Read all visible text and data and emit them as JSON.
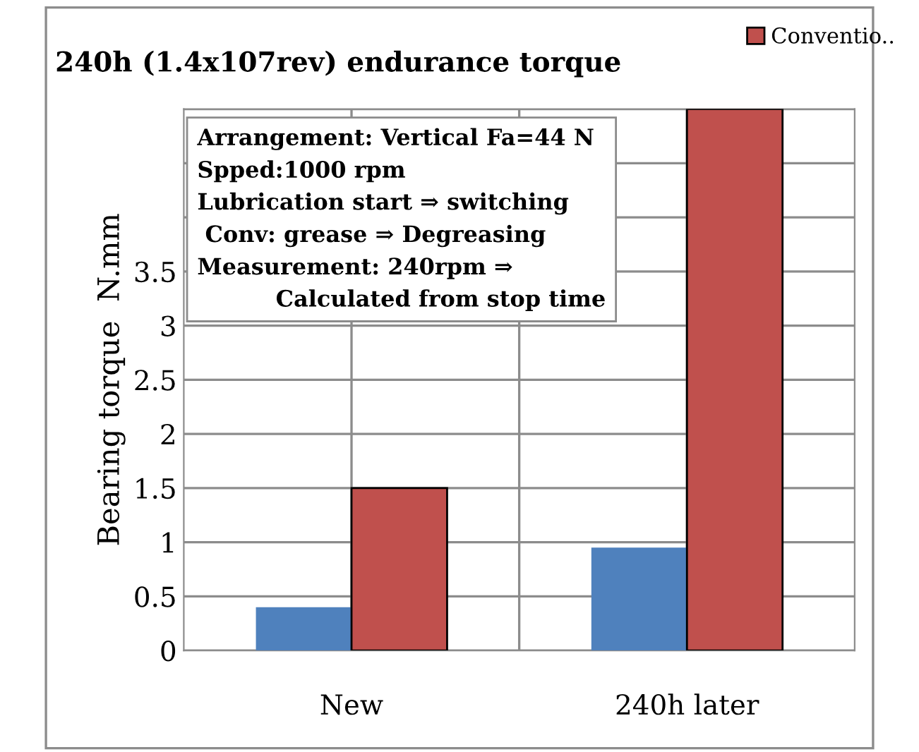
{
  "chart_data": {
    "type": "bar",
    "title": "240h (1.4x107rev) endurance torque",
    "ylabel": "Bearing torque  N.mm",
    "categories": [
      "New",
      "240h later"
    ],
    "series": [
      {
        "color": "#4f81bd",
        "values": [
          0.4,
          0.95
        ]
      },
      {
        "name": "Conventio..",
        "color": "#c0504d",
        "values": [
          1.5,
          5
        ]
      }
    ],
    "ylim": [
      0,
      5
    ],
    "yticks": [
      0,
      0.5,
      1,
      1.5,
      2,
      2.5,
      3,
      3.5,
      {
        "value": 4,
        "label": null
      },
      {
        "value": 4.5,
        "label": null
      },
      {
        "value": 5,
        "label": null
      }
    ],
    "grid": true,
    "legend": "top right",
    "annotations": [
      "Arrangement: Vertical Fa=44 N\nSpped:1000 rpm\nLubrication start ⇒ switching\n Conv: grease ⇒ Degreasing\nMeasurement: 240rpm ⇒\n          Calculated from stop time"
    ]
  }
}
